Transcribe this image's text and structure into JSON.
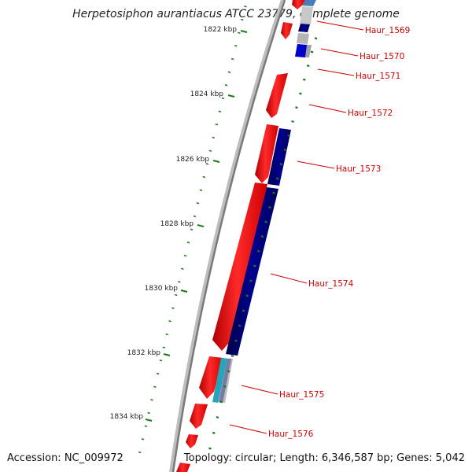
{
  "title": "Herpetosiphon aurantiacus ATCC 23779, complete genome",
  "footer": {
    "accession": "Accession: NC_009972",
    "summary": "Topology: circular; Length: 6,346,587 bp; Genes: 5,042"
  },
  "ruler": {
    "unit": "kbp",
    "major_ticks": [
      "1822 kbp",
      "1824 kbp",
      "1826 kbp",
      "1828 kbp",
      "1830 kbp",
      "1832 kbp",
      "1834 kbp"
    ]
  },
  "genes": [
    {
      "name": "Haur_1569"
    },
    {
      "name": "Haur_1570"
    },
    {
      "name": "Haur_1571"
    },
    {
      "name": "Haur_1572"
    },
    {
      "name": "Haur_1573"
    },
    {
      "name": "Haur_1574"
    },
    {
      "name": "Haur_1575"
    },
    {
      "name": "Haur_1576"
    }
  ],
  "colors": {
    "forward_cds": "#ee1111",
    "blast_hit": "#000080",
    "label": "#cc0000",
    "tick": "#1a7a1a",
    "backbone": "#888888"
  }
}
